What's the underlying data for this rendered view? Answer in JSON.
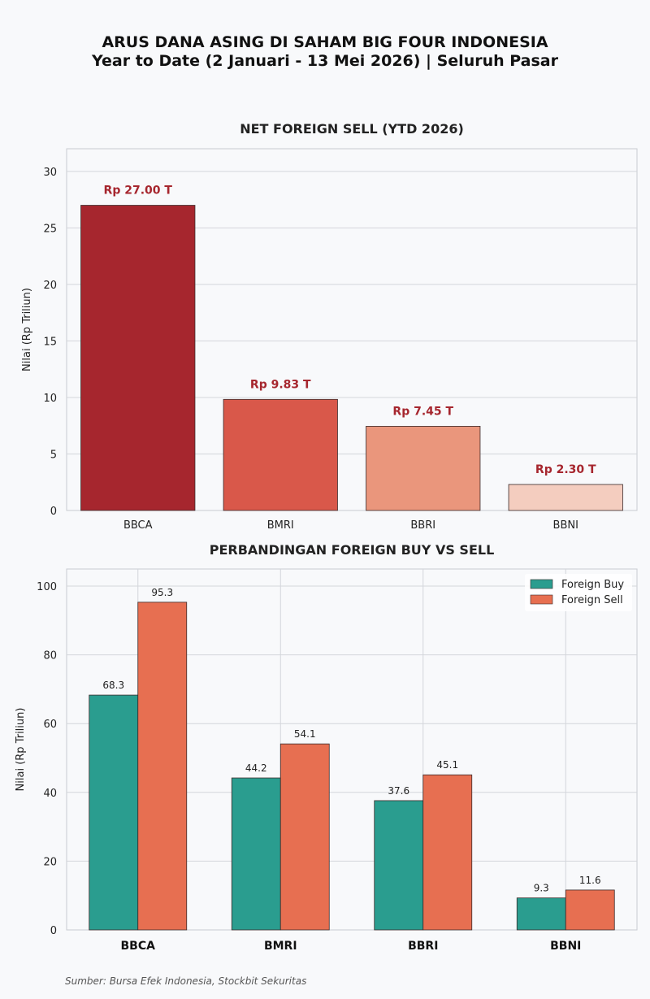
{
  "title": "ARUS DANA ASING DI SAHAM BIG FOUR INDONESIA",
  "subtitle": "Year to Date (2 Januari - 13 Mei 2026) | Seluruh Pasar",
  "source": "Sumber: Bursa Efek Indonesia, Stockbit Sekuritas",
  "chart_data": [
    {
      "type": "bar",
      "title": "NET FOREIGN SELL (YTD 2026)",
      "ylabel": "Nilai (Rp Triliun)",
      "categories": [
        "BBCA",
        "BMRI",
        "BBRI",
        "BBNI"
      ],
      "values": [
        27.0,
        9.83,
        7.45,
        2.3
      ],
      "data_labels": [
        "Rp 27.00 T",
        "Rp 9.83 T",
        "Rp 7.45 T",
        "Rp 2.30 T"
      ],
      "colors": [
        "#a6262e",
        "#d9584a",
        "#ea967c",
        "#f4cdbf"
      ],
      "label_color": "#a6262e",
      "ylim": [
        0,
        32
      ],
      "yticks": [
        0,
        5,
        10,
        15,
        20,
        25,
        30
      ],
      "grid": "y"
    },
    {
      "type": "bar",
      "title": "PERBANDINGAN FOREIGN BUY VS SELL",
      "ylabel": "Nilai (Rp Triliun)",
      "categories": [
        "BBCA",
        "BMRI",
        "BBRI",
        "BBNI"
      ],
      "series": [
        {
          "name": "Foreign Buy",
          "values": [
            68.3,
            44.2,
            37.6,
            9.3
          ],
          "color": "#2a9d8f"
        },
        {
          "name": "Foreign Sell",
          "values": [
            95.3,
            54.1,
            45.1,
            11.6
          ],
          "color": "#e76f51"
        }
      ],
      "ylim": [
        0,
        100
      ],
      "yticks": [
        0,
        20,
        40,
        60,
        80,
        100
      ],
      "grid": "both",
      "legend": "top-right"
    }
  ]
}
